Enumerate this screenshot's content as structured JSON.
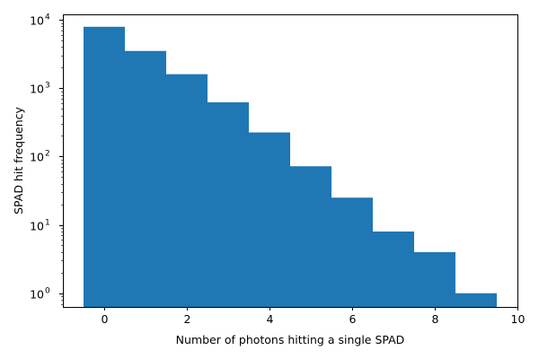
{
  "chart_data": {
    "type": "bar",
    "xlabel": "Number of photons hitting a single SPAD",
    "ylabel": "SPAD hit frequency",
    "x_scale": "linear",
    "y_scale": "log",
    "xlim": [
      -1,
      10
    ],
    "ylim": [
      0.63,
      12000
    ],
    "x_ticks": [
      0,
      2,
      4,
      6,
      8,
      10
    ],
    "y_ticks": [
      {
        "value": 1,
        "base": "10",
        "exp": "0"
      },
      {
        "value": 10,
        "base": "10",
        "exp": "1"
      },
      {
        "value": 100,
        "base": "10",
        "exp": "2"
      },
      {
        "value": 1000,
        "base": "10",
        "exp": "3"
      },
      {
        "value": 10000,
        "base": "10",
        "exp": "4"
      }
    ],
    "bins": [
      {
        "left": -0.5,
        "right": 0.5,
        "count": 7900
      },
      {
        "left": 0.5,
        "right": 1.5,
        "count": 3500
      },
      {
        "left": 1.5,
        "right": 2.5,
        "count": 1600
      },
      {
        "left": 2.5,
        "right": 3.5,
        "count": 620
      },
      {
        "left": 3.5,
        "right": 4.5,
        "count": 225
      },
      {
        "left": 4.5,
        "right": 5.5,
        "count": 72
      },
      {
        "left": 5.5,
        "right": 6.5,
        "count": 25
      },
      {
        "left": 6.5,
        "right": 7.5,
        "count": 8
      },
      {
        "left": 7.5,
        "right": 8.5,
        "count": 4
      },
      {
        "left": 8.5,
        "right": 9.5,
        "count": 1
      }
    ],
    "colors": {
      "bar": "#1f77b4",
      "axis": "#000000"
    },
    "grid": false,
    "legend": "none"
  }
}
